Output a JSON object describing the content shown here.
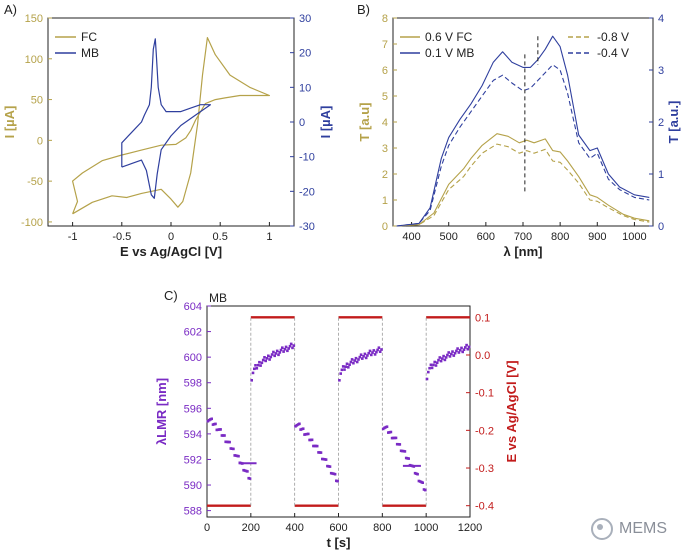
{
  "panels": {
    "a": "A)",
    "b": "B)",
    "c": "C)"
  },
  "colors": {
    "fc": "#b5a24a",
    "mb": "#2f3f9e",
    "purple": "#7a2bc4",
    "red": "#c21b1b",
    "axis": "#222222"
  },
  "watermark": "MEMS",
  "chart_data": [
    {
      "type": "line",
      "panel": "A)",
      "xlabel": "E vs Ag/AgCl [V]",
      "ylabel": "I [µA]",
      "ylabel_right": "I [µA]",
      "xlim": [
        -1.25,
        1.25
      ],
      "ylim": [
        -105,
        150
      ],
      "ylim_right": [
        -30,
        30
      ],
      "xticks": [
        -1.0,
        -0.5,
        0.0,
        0.5,
        1.0
      ],
      "yticks": [
        -100,
        -50,
        0,
        50,
        100,
        150
      ],
      "yticks_right": [
        -30,
        -20,
        -10,
        0,
        10,
        20,
        30
      ],
      "legend": "top-left",
      "series": [
        {
          "name": "FC",
          "axis": "left",
          "color": "#b5a24a",
          "points": [
            [
              -1.0,
              -90
            ],
            [
              -0.8,
              -76
            ],
            [
              -0.6,
              -68
            ],
            [
              -0.45,
              -70
            ],
            [
              -0.3,
              -65
            ],
            [
              -0.1,
              -60
            ],
            [
              0.0,
              -72
            ],
            [
              0.07,
              -82
            ],
            [
              0.12,
              -75
            ],
            [
              0.2,
              -40
            ],
            [
              0.27,
              20
            ],
            [
              0.32,
              80
            ],
            [
              0.37,
              126
            ],
            [
              0.45,
              105
            ],
            [
              0.6,
              80
            ],
            [
              0.8,
              65
            ],
            [
              1.0,
              55
            ],
            [
              0.9,
              55
            ],
            [
              0.7,
              55
            ],
            [
              0.55,
              52
            ],
            [
              0.45,
              50
            ],
            [
              0.35,
              45
            ],
            [
              0.25,
              25
            ],
            [
              0.2,
              12
            ],
            [
              0.15,
              3
            ],
            [
              0.05,
              -5
            ],
            [
              -0.1,
              -6
            ],
            [
              -0.3,
              -12
            ],
            [
              -0.5,
              -18
            ],
            [
              -0.7,
              -25
            ],
            [
              -0.9,
              -40
            ],
            [
              -1.0,
              -50
            ],
            [
              -0.95,
              -75
            ],
            [
              -1.0,
              -90
            ]
          ]
        },
        {
          "name": "MB",
          "axis": "right",
          "color": "#2f3f9e",
          "points": [
            [
              -0.5,
              -13
            ],
            [
              -0.4,
              -12
            ],
            [
              -0.3,
              -11
            ],
            [
              -0.25,
              -14
            ],
            [
              -0.2,
              -21
            ],
            [
              -0.17,
              -22
            ],
            [
              -0.14,
              -15
            ],
            [
              -0.1,
              -8
            ],
            [
              0.0,
              -4
            ],
            [
              0.1,
              -1
            ],
            [
              0.2,
              1
            ],
            [
              0.3,
              3
            ],
            [
              0.4,
              5
            ],
            [
              0.3,
              5
            ],
            [
              0.2,
              4
            ],
            [
              0.1,
              3
            ],
            [
              0.0,
              3
            ],
            [
              -0.05,
              3
            ],
            [
              -0.1,
              5
            ],
            [
              -0.13,
              10
            ],
            [
              -0.15,
              20
            ],
            [
              -0.16,
              24
            ],
            [
              -0.18,
              21
            ],
            [
              -0.2,
              10
            ],
            [
              -0.22,
              5
            ],
            [
              -0.27,
              2
            ],
            [
              -0.3,
              0
            ],
            [
              -0.4,
              -3
            ],
            [
              -0.5,
              -6
            ],
            [
              -0.5,
              -13
            ]
          ]
        }
      ]
    },
    {
      "type": "line",
      "panel": "B)",
      "xlabel": "λ [nm]",
      "ylabel": "T [a.u]",
      "ylabel_right": "T [a.u.]",
      "xlim": [
        350,
        1050
      ],
      "ylim": [
        0,
        8
      ],
      "ylim_right": [
        0,
        4
      ],
      "xticks": [
        400,
        500,
        600,
        700,
        800,
        900,
        1000
      ],
      "yticks": [
        0,
        1,
        2,
        3,
        4,
        5,
        6,
        7,
        8
      ],
      "yticks_right": [
        0,
        1,
        2,
        3,
        4
      ],
      "legend_left": [
        "0.6 V FC",
        "0.1 V MB"
      ],
      "legend_right": [
        "-0.8 V",
        "-0.4 V"
      ],
      "series": [
        {
          "name": "0.6 V FC",
          "axis": "left",
          "color": "#b5a24a",
          "dash": false,
          "points": [
            [
              360,
              0
            ],
            [
              420,
              0.05
            ],
            [
              460,
              0.5
            ],
            [
              500,
              1.6
            ],
            [
              540,
              2.2
            ],
            [
              560,
              2.6
            ],
            [
              590,
              3.1
            ],
            [
              630,
              3.55
            ],
            [
              660,
              3.45
            ],
            [
              690,
              3.2
            ],
            [
              710,
              3.3
            ],
            [
              730,
              3.2
            ],
            [
              760,
              3.35
            ],
            [
              780,
              2.9
            ],
            [
              800,
              2.85
            ],
            [
              820,
              2.5
            ],
            [
              850,
              1.9
            ],
            [
              880,
              1.2
            ],
            [
              900,
              1.1
            ],
            [
              930,
              0.8
            ],
            [
              970,
              0.45
            ],
            [
              1000,
              0.3
            ],
            [
              1040,
              0.2
            ]
          ]
        },
        {
          "name": "-0.8 V",
          "axis": "left",
          "color": "#b5a24a",
          "dash": true,
          "points": [
            [
              360,
              0
            ],
            [
              420,
              0.05
            ],
            [
              460,
              0.4
            ],
            [
              500,
              1.4
            ],
            [
              540,
              1.9
            ],
            [
              560,
              2.3
            ],
            [
              590,
              2.8
            ],
            [
              630,
              3.15
            ],
            [
              660,
              3.05
            ],
            [
              690,
              2.8
            ],
            [
              710,
              2.9
            ],
            [
              730,
              2.8
            ],
            [
              760,
              2.95
            ],
            [
              780,
              2.5
            ],
            [
              800,
              2.45
            ],
            [
              820,
              2.15
            ],
            [
              850,
              1.65
            ],
            [
              880,
              1.0
            ],
            [
              900,
              0.95
            ],
            [
              930,
              0.7
            ],
            [
              970,
              0.4
            ],
            [
              1000,
              0.25
            ],
            [
              1040,
              0.15
            ]
          ]
        },
        {
          "name": "0.1 V MB",
          "axis": "right",
          "color": "#2f3f9e",
          "dash": false,
          "points": [
            [
              360,
              0
            ],
            [
              420,
              0.05
            ],
            [
              450,
              0.35
            ],
            [
              480,
              1.3
            ],
            [
              500,
              1.7
            ],
            [
              530,
              2.05
            ],
            [
              560,
              2.35
            ],
            [
              590,
              2.7
            ],
            [
              620,
              3.15
            ],
            [
              645,
              3.35
            ],
            [
              670,
              3.15
            ],
            [
              700,
              3.05
            ],
            [
              720,
              3.05
            ],
            [
              740,
              3.2
            ],
            [
              760,
              3.4
            ],
            [
              780,
              3.65
            ],
            [
              800,
              3.45
            ],
            [
              820,
              2.9
            ],
            [
              850,
              1.75
            ],
            [
              880,
              1.45
            ],
            [
              900,
              1.5
            ],
            [
              930,
              1.0
            ],
            [
              960,
              0.75
            ],
            [
              1000,
              0.6
            ],
            [
              1040,
              0.55
            ]
          ]
        },
        {
          "name": "-0.4 V",
          "axis": "right",
          "color": "#2f3f9e",
          "dash": true,
          "points": [
            [
              360,
              0
            ],
            [
              420,
              0.05
            ],
            [
              450,
              0.3
            ],
            [
              480,
              1.15
            ],
            [
              500,
              1.55
            ],
            [
              530,
              1.9
            ],
            [
              560,
              2.2
            ],
            [
              590,
              2.5
            ],
            [
              620,
              2.8
            ],
            [
              645,
              2.9
            ],
            [
              670,
              2.75
            ],
            [
              700,
              2.6
            ],
            [
              720,
              2.65
            ],
            [
              740,
              2.8
            ],
            [
              760,
              2.95
            ],
            [
              780,
              3.1
            ],
            [
              800,
              3.0
            ],
            [
              820,
              2.55
            ],
            [
              850,
              1.6
            ],
            [
              880,
              1.3
            ],
            [
              900,
              1.4
            ],
            [
              930,
              0.9
            ],
            [
              960,
              0.7
            ],
            [
              1000,
              0.55
            ],
            [
              1040,
              0.5
            ]
          ]
        }
      ]
    },
    {
      "type": "scatter",
      "panel": "C)",
      "title": "MB",
      "xlabel": "t [s]",
      "ylabel": "λLMR [nm]",
      "ylabel_right": "E vs Ag/AgCl [V]",
      "xlim": [
        0,
        1200
      ],
      "ylim": [
        587.5,
        604
      ],
      "ylim_right": [
        -0.43,
        0.13
      ],
      "xticks": [
        0,
        200,
        400,
        600,
        800,
        1000,
        1200
      ],
      "yticks": [
        588,
        590,
        592,
        594,
        596,
        598,
        600,
        602,
        604
      ],
      "yticks_right": [
        -0.4,
        -0.3,
        -0.2,
        -0.1,
        0.0,
        0.1
      ],
      "potential_series": {
        "name": "E",
        "color": "#c21b1b",
        "segments": [
          [
            0,
            200,
            -0.4
          ],
          [
            200,
            400,
            0.1
          ],
          [
            400,
            600,
            -0.4
          ],
          [
            600,
            800,
            0.1
          ],
          [
            800,
            1000,
            -0.4
          ],
          [
            1000,
            1200,
            0.1
          ]
        ]
      },
      "wavelength_series": {
        "name": "λLMR",
        "color": "#7a2bc4",
        "cycles": [
          {
            "t_start": 0,
            "t_end": 200,
            "start": 595.2,
            "end": 590.5,
            "drop": true
          },
          {
            "t_start": 200,
            "t_end": 400,
            "start": 598.4,
            "end": 600.9,
            "drop": false
          },
          {
            "t_start": 400,
            "t_end": 600,
            "start": 594.8,
            "end": 590.3,
            "drop": true
          },
          {
            "t_start": 600,
            "t_end": 800,
            "start": 598.4,
            "end": 600.6,
            "drop": false
          },
          {
            "t_start": 800,
            "t_end": 1000,
            "start": 594.6,
            "end": 589.6,
            "drop": true
          },
          {
            "t_start": 1000,
            "t_end": 1200,
            "start": 598.5,
            "end": 600.8,
            "drop": false
          }
        ],
        "markers": [
          {
            "t": 185,
            "y": 591.7
          },
          {
            "t": 935,
            "y": 591.5
          }
        ]
      }
    }
  ]
}
